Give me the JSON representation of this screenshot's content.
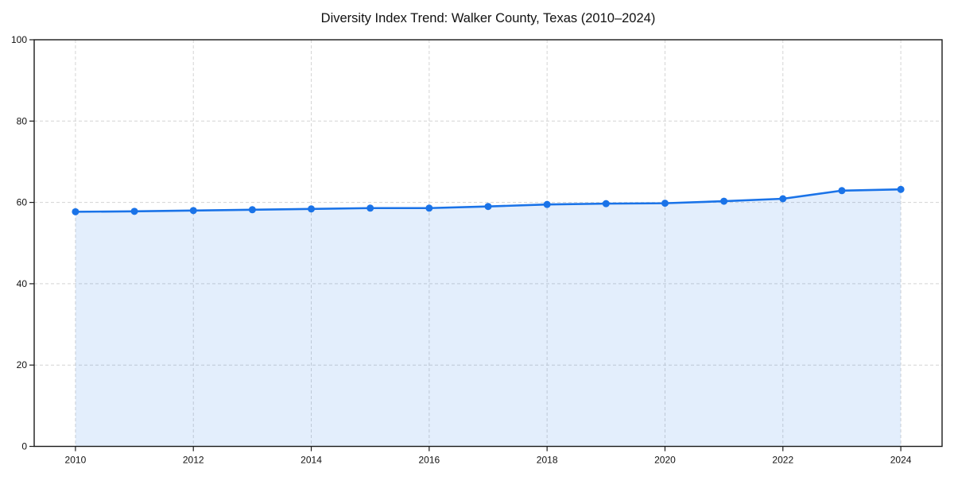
{
  "chart_data": {
    "type": "area",
    "title": "Diversity Index Trend: Walker County, Texas (2010–2024)",
    "x": [
      2010,
      2011,
      2012,
      2013,
      2014,
      2015,
      2016,
      2017,
      2018,
      2019,
      2020,
      2021,
      2022,
      2023,
      2024
    ],
    "series": [
      {
        "name": "Diversity Index",
        "values": [
          57.7,
          57.8,
          58.0,
          58.2,
          58.4,
          58.6,
          58.6,
          59.0,
          59.5,
          59.7,
          59.8,
          60.3,
          60.9,
          62.9,
          63.2
        ]
      }
    ],
    "xlabel": "",
    "ylabel": "",
    "xlim": [
      2009.3,
      2024.7
    ],
    "ylim": [
      0,
      100
    ],
    "xticks": [
      2010,
      2012,
      2014,
      2016,
      2018,
      2020,
      2022,
      2024
    ],
    "yticks": [
      0,
      20,
      40,
      60,
      80,
      100
    ],
    "grid": "dashed, both axes",
    "legend": false,
    "marker": "circle",
    "colors": {
      "line": "#1a73e8",
      "marker": "#1a73e8",
      "fill": "rgba(26,115,232,0.12)",
      "grid": "#d4d4d4",
      "frame": "#1a1a1a",
      "title": "#111111",
      "tick_label": "#111111",
      "background": "#ffffff"
    }
  }
}
